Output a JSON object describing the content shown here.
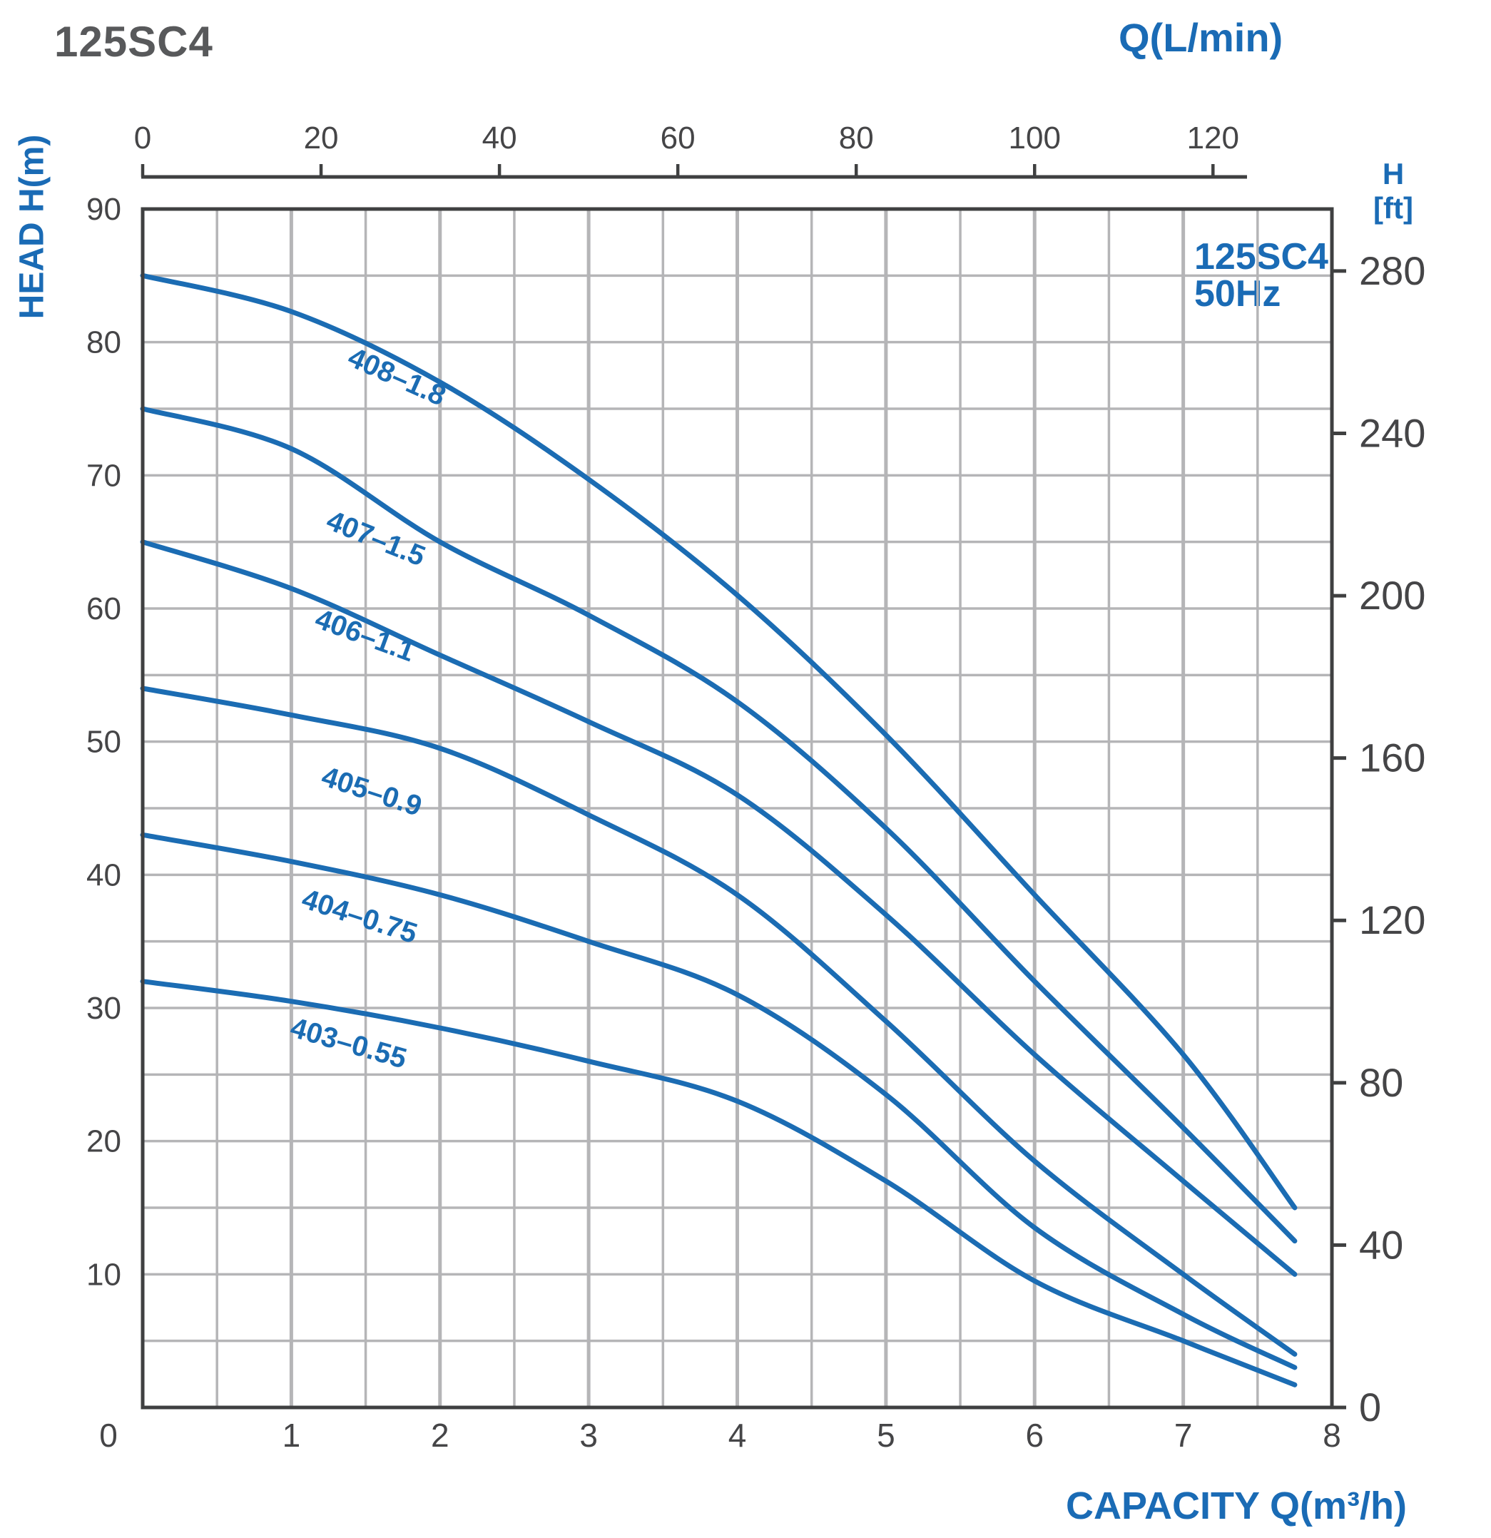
{
  "title": "125SC4",
  "legend": {
    "line1": "125SC4",
    "line2": "50Hz"
  },
  "colors": {
    "accent_blue": "#1a6bb5",
    "curve_blue": "#1b6cb3",
    "text_gray": "#454547",
    "grid_gray": "#b5b5b7",
    "border_gray": "#3f4041",
    "background": "#ffffff"
  },
  "chart_data": {
    "type": "line",
    "title": "125SC4",
    "legend_label": "125SC4 50Hz",
    "x_axis_bottom": {
      "label": "CAPACITY Q(m³/h)",
      "unit": "m³/h",
      "ticks": [
        0,
        1,
        2,
        3,
        4,
        5,
        6,
        7,
        8
      ],
      "range": [
        0,
        8
      ]
    },
    "x_axis_top": {
      "label": "Q(L/min)",
      "unit": "L/min",
      "ticks": [
        0,
        20,
        40,
        60,
        80,
        100,
        120
      ],
      "range": [
        0,
        130
      ]
    },
    "y_axis_left": {
      "label": "HEAD H(m)",
      "unit": "m",
      "ticks": [
        90,
        80,
        70,
        60,
        50,
        40,
        30,
        20,
        10
      ],
      "range": [
        0,
        90
      ]
    },
    "y_axis_right": {
      "label_lines": [
        "H",
        "[ft]"
      ],
      "unit": "ft",
      "ticks": [
        280,
        240,
        200,
        160,
        120,
        80,
        40,
        0
      ],
      "range": [
        0,
        295.3
      ]
    },
    "grid": {
      "x_step": 0.5,
      "y_step": 5,
      "grid_on": true
    },
    "series": [
      {
        "name": "408–1.8",
        "points": [
          [
            0,
            85
          ],
          [
            1,
            82.3
          ],
          [
            2,
            77
          ],
          [
            3,
            69.7
          ],
          [
            4,
            61
          ],
          [
            5,
            50.5
          ],
          [
            6,
            38.5
          ],
          [
            7,
            26.5
          ],
          [
            7.75,
            15
          ]
        ]
      },
      {
        "name": "407–1.5",
        "points": [
          [
            0,
            75
          ],
          [
            1,
            72
          ],
          [
            2,
            65
          ],
          [
            3,
            59.5
          ],
          [
            4,
            53
          ],
          [
            5,
            43.5
          ],
          [
            6,
            32
          ],
          [
            7,
            21
          ],
          [
            7.75,
            12.5
          ]
        ]
      },
      {
        "name": "406–1.1",
        "points": [
          [
            0,
            65
          ],
          [
            1,
            61.5
          ],
          [
            2,
            56.5
          ],
          [
            3,
            51.5
          ],
          [
            4,
            46
          ],
          [
            5,
            37
          ],
          [
            6,
            26.5
          ],
          [
            7,
            17
          ],
          [
            7.75,
            10
          ]
        ]
      },
      {
        "name": "405–0.9",
        "points": [
          [
            0,
            54
          ],
          [
            1,
            52
          ],
          [
            2,
            49.5
          ],
          [
            3,
            44.5
          ],
          [
            4,
            38.5
          ],
          [
            5,
            29
          ],
          [
            6,
            18.5
          ],
          [
            7,
            10
          ],
          [
            7.75,
            4
          ]
        ]
      },
      {
        "name": "404–0.75",
        "points": [
          [
            0,
            43
          ],
          [
            1,
            41
          ],
          [
            2,
            38.5
          ],
          [
            3,
            35
          ],
          [
            4,
            31
          ],
          [
            5,
            23.5
          ],
          [
            6,
            13.5
          ],
          [
            7,
            7
          ],
          [
            7.75,
            3
          ]
        ]
      },
      {
        "name": "403–0.55",
        "points": [
          [
            0,
            32
          ],
          [
            1,
            30.5
          ],
          [
            2,
            28.5
          ],
          [
            3,
            26
          ],
          [
            4,
            23
          ],
          [
            5,
            17
          ],
          [
            6,
            9.5
          ],
          [
            7,
            5
          ],
          [
            7.75,
            1.7
          ]
        ]
      }
    ]
  }
}
